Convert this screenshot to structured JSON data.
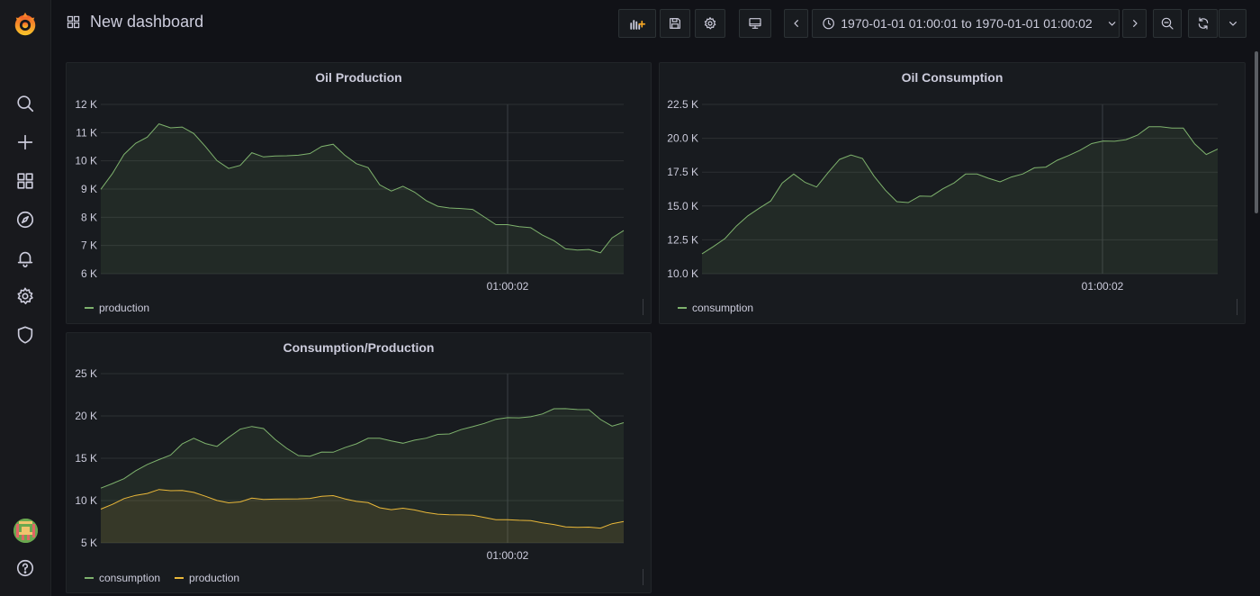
{
  "header": {
    "title": "New dashboard",
    "time_range": "1970-01-01 01:00:01 to 1970-01-01 01:00:02",
    "icons": [
      "add-panel-icon",
      "save-icon",
      "settings-icon",
      "tv-mode-icon",
      "time-back-icon",
      "clock-icon",
      "time-forward-icon",
      "zoom-out-icon",
      "refresh-icon",
      "refresh-interval-icon"
    ]
  },
  "sidebar": {
    "items": [
      "grafana-logo-icon",
      "search-icon",
      "create-icon",
      "dashboards-icon",
      "explore-icon",
      "alerting-icon",
      "configuration-icon",
      "server-admin-icon",
      "user-avatar",
      "help-icon"
    ]
  },
  "colors": {
    "green": "#7eb26d",
    "yellow": "#eab839"
  },
  "panels": [
    {
      "title": "Oil Production",
      "legend": [
        "production"
      ]
    },
    {
      "title": "Oil Consumption",
      "legend": [
        "consumption"
      ]
    },
    {
      "title": "Consumption/Production",
      "legend": [
        "consumption",
        "production"
      ]
    }
  ],
  "chart_data": [
    {
      "type": "area",
      "title": "Oil Production",
      "x_tick_labels": [
        "01:00:02"
      ],
      "y_tick_labels": [
        "6 K",
        "7 K",
        "8 K",
        "9 K",
        "10 K",
        "11 K",
        "12 K"
      ],
      "ylim": [
        6000,
        12000
      ],
      "series": [
        {
          "name": "production",
          "color": "#7eb26d",
          "values": [
            8990,
            9550,
            10230,
            10620,
            10840,
            11310,
            11170,
            11200,
            10970,
            10510,
            10010,
            9730,
            9840,
            10290,
            10140,
            10170,
            10180,
            10200,
            10260,
            10510,
            10590,
            10200,
            9900,
            9760,
            9150,
            8930,
            9100,
            8890,
            8590,
            8390,
            8330,
            8310,
            8280,
            8010,
            7740,
            7740,
            7670,
            7630,
            7370,
            7170,
            6880,
            6840,
            6860,
            6740,
            7270,
            7530
          ]
        }
      ],
      "grid": true
    },
    {
      "type": "area",
      "title": "Oil Consumption",
      "x_tick_labels": [
        "01:00:02"
      ],
      "y_tick_labels": [
        "10.0 K",
        "12.5 K",
        "15.0 K",
        "17.5 K",
        "20.0 K",
        "22.5 K"
      ],
      "ylim": [
        10000,
        22500
      ],
      "series": [
        {
          "name": "consumption",
          "color": "#7eb26d",
          "values": [
            11470,
            12010,
            12590,
            13520,
            14270,
            14840,
            15370,
            16690,
            17360,
            16740,
            16400,
            17470,
            18440,
            18760,
            18510,
            17220,
            16170,
            15320,
            15250,
            15730,
            15710,
            16260,
            16700,
            17360,
            17360,
            17050,
            16780,
            17140,
            17370,
            17820,
            17870,
            18380,
            18730,
            19120,
            19610,
            19800,
            19780,
            19900,
            20230,
            20850,
            20860,
            20760,
            20750,
            19580,
            18800,
            19200
          ]
        }
      ],
      "grid": true
    },
    {
      "type": "area",
      "title": "Consumption/Production",
      "x_tick_labels": [
        "01:00:02"
      ],
      "y_tick_labels": [
        "5 K",
        "10 K",
        "15 K",
        "20 K",
        "25 K"
      ],
      "ylim": [
        5000,
        25000
      ],
      "series": [
        {
          "name": "consumption",
          "color": "#7eb26d",
          "values": [
            11470,
            12010,
            12590,
            13520,
            14270,
            14840,
            15370,
            16690,
            17360,
            16740,
            16400,
            17470,
            18440,
            18760,
            18510,
            17220,
            16170,
            15320,
            15250,
            15730,
            15710,
            16260,
            16700,
            17360,
            17360,
            17050,
            16780,
            17140,
            17370,
            17820,
            17870,
            18380,
            18730,
            19120,
            19610,
            19800,
            19780,
            19900,
            20230,
            20850,
            20860,
            20760,
            20750,
            19580,
            18800,
            19200
          ]
        },
        {
          "name": "production",
          "color": "#eab839",
          "values": [
            8990,
            9550,
            10230,
            10620,
            10840,
            11310,
            11170,
            11200,
            10970,
            10510,
            10010,
            9730,
            9840,
            10290,
            10140,
            10170,
            10180,
            10200,
            10260,
            10510,
            10590,
            10200,
            9900,
            9760,
            9150,
            8930,
            9100,
            8890,
            8590,
            8390,
            8330,
            8310,
            8280,
            8010,
            7740,
            7740,
            7670,
            7630,
            7370,
            7170,
            6880,
            6840,
            6860,
            6740,
            7270,
            7530
          ]
        }
      ],
      "grid": true
    }
  ]
}
